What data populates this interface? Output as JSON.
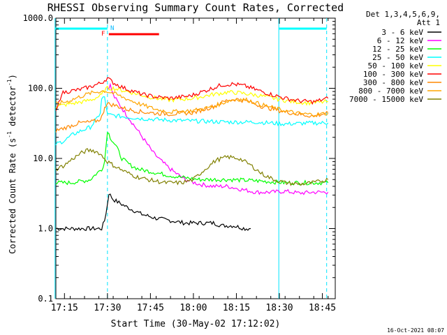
{
  "chart_data": {
    "type": "line",
    "title": "RHESSI Observing Summary Count Rates, Corrected",
    "xlabel": "Start Time (30-May-02 17:12:02)",
    "ylabel_main": "Corrected Count Rate (s",
    "ylabel_sup1": "-1",
    "ylabel_mid": " detector",
    "ylabel_sup2": "-1",
    "ylabel_end": ")",
    "y_scale": "log",
    "ylim": [
      0.1,
      1000
    ],
    "xlim_minutes": [
      0,
      97.5
    ],
    "x_ticks": [
      {
        "label": "17:15",
        "minutes": 3
      },
      {
        "label": "17:30",
        "minutes": 18
      },
      {
        "label": "17:45",
        "minutes": 33
      },
      {
        "label": "18:00",
        "minutes": 48
      },
      {
        "label": "18:15",
        "minutes": 63
      },
      {
        "label": "18:30",
        "minutes": 78
      },
      {
        "label": "18:45",
        "minutes": 93
      }
    ],
    "y_ticks": [
      {
        "label": "0.1",
        "value": 0.1
      },
      {
        "label": "1.0",
        "value": 1
      },
      {
        "label": "10.0",
        "value": 10
      },
      {
        "label": "100.0",
        "value": 100
      },
      {
        "label": "1000.0",
        "value": 1000
      }
    ],
    "legend_header": [
      "Det 1,3,4,5,6,9,",
      "Att 1"
    ],
    "legend_placement": "right",
    "flag_labels": {
      "F": "F",
      "N": "N"
    },
    "timestamp": "16-Oct-2021 08:07",
    "series": [
      {
        "name": "3 - 6 keV",
        "color": "#000000",
        "x": [
          0,
          12,
          16,
          17,
          18,
          18.5,
          20,
          25,
          30,
          35,
          40,
          45,
          50,
          55,
          58,
          62,
          66,
          68
        ],
        "y": [
          1,
          1,
          1,
          1.3,
          2.2,
          3.2,
          2.6,
          2.0,
          1.6,
          1.4,
          1.3,
          1.2,
          1.2,
          1.2,
          1.1,
          1.1,
          1.0,
          1.0
        ]
      },
      {
        "name": "6 - 12 keV",
        "color": "#ff00ff",
        "x": [
          18,
          19,
          20,
          22,
          25,
          28,
          31,
          34,
          37,
          40,
          45,
          50,
          55,
          60,
          65,
          70,
          75,
          80,
          85,
          90,
          95
        ],
        "y": [
          100,
          110,
          80,
          60,
          40,
          27,
          18,
          12,
          9,
          7,
          5,
          4.3,
          4,
          4,
          3.6,
          3.3,
          3.3,
          3.4,
          3.2,
          3.3,
          3.3
        ]
      },
      {
        "name": "12 - 25 keV",
        "color": "#00ff00",
        "x": [
          0,
          5,
          10,
          12,
          14,
          16,
          17,
          18,
          19,
          21,
          23,
          26,
          29,
          33,
          37,
          42,
          50,
          60,
          70,
          80,
          90,
          95
        ],
        "y": [
          4.5,
          4.5,
          4.8,
          5,
          6,
          7,
          9,
          25,
          20,
          15,
          10,
          8,
          7,
          6.5,
          6,
          5.5,
          5,
          5,
          4.8,
          4.5,
          4.5,
          4.5
        ]
      },
      {
        "name": "25 - 50 keV",
        "color": "#00ffff",
        "x": [
          0,
          3,
          6,
          9,
          12,
          14,
          15.5,
          16,
          17,
          18,
          22,
          30,
          40,
          50,
          60,
          70,
          80,
          90,
          95
        ],
        "y": [
          16,
          18,
          22,
          25,
          28,
          35,
          45,
          70,
          75,
          42,
          40,
          37,
          35,
          34,
          33,
          33,
          31,
          32,
          32
        ]
      },
      {
        "name": "50 - 100 keV",
        "color": "#ffff00",
        "x": [
          0,
          5,
          10,
          13,
          16,
          17,
          18,
          20,
          25,
          30,
          35,
          40,
          48,
          55,
          60,
          64,
          70,
          76,
          82,
          88,
          92,
          95
        ],
        "y": [
          55,
          60,
          65,
          70,
          80,
          95,
          100,
          100,
          90,
          80,
          72,
          68,
          72,
          82,
          88,
          86,
          80,
          72,
          65,
          62,
          63,
          65
        ]
      },
      {
        "name": "100 - 300 keV",
        "color": "#ff0000",
        "x": [
          0,
          2,
          4,
          8,
          12,
          16,
          17,
          18,
          20,
          24,
          30,
          35,
          40,
          47,
          53,
          58,
          62,
          66,
          70,
          75,
          80,
          85,
          90,
          95
        ],
        "y": [
          45,
          85,
          90,
          95,
          105,
          120,
          130,
          140,
          120,
          100,
          82,
          75,
          72,
          78,
          95,
          112,
          115,
          108,
          95,
          82,
          72,
          66,
          64,
          72
        ]
      },
      {
        "name": "300 - 800 keV",
        "color": "#ff8800",
        "x": [
          0,
          4,
          8,
          12,
          15,
          16.5,
          17,
          18,
          20,
          25,
          30,
          35,
          40,
          48,
          55,
          60,
          63,
          67,
          72,
          78,
          84,
          90,
          95
        ],
        "y": [
          25,
          28,
          32,
          33,
          35,
          42,
          55,
          60,
          58,
          50,
          46,
          44,
          43,
          45,
          55,
          68,
          70,
          65,
          55,
          48,
          43,
          40,
          45
        ]
      },
      {
        "name": "800 - 7000 keV",
        "color": "#ffa500",
        "x": [
          0,
          4,
          8,
          12,
          15,
          17,
          18,
          20,
          25,
          30,
          35,
          40,
          48,
          55,
          60,
          63,
          67,
          72,
          78,
          84,
          90,
          95
        ],
        "y": [
          60,
          65,
          75,
          85,
          90,
          92,
          90,
          85,
          70,
          58,
          50,
          46,
          48,
          55,
          66,
          70,
          68,
          58,
          50,
          44,
          42,
          44
        ]
      },
      {
        "name": "7000 - 15000 keV",
        "color": "#808000",
        "x": [
          0,
          3,
          6,
          9,
          11,
          13,
          15,
          17,
          18,
          20,
          24,
          28,
          32,
          38,
          44,
          48,
          52,
          56,
          60,
          64,
          68,
          72,
          76,
          80,
          85,
          90,
          95
        ],
        "y": [
          7,
          8,
          10,
          12,
          13,
          13,
          12,
          10,
          9,
          8,
          6.5,
          5.5,
          5,
          4.5,
          4.5,
          5,
          7,
          9.5,
          10.5,
          10,
          8,
          6,
          5,
          4.5,
          4.3,
          4.5,
          5
        ]
      }
    ],
    "markers": {
      "vertical_solid_minutes": [
        -0.3,
        77.8
      ],
      "vertical_dashed_minutes": [
        18,
        94.5
      ],
      "attenuator_bars": [
        {
          "color": "#00ffff",
          "from": -0.3,
          "to": 18,
          "level": "top"
        },
        {
          "color": "#00ffff",
          "from": 77.8,
          "to": 94.5,
          "level": "top"
        },
        {
          "color": "#ff0000",
          "from": 18.5,
          "to": 36,
          "level": "second"
        }
      ]
    }
  }
}
